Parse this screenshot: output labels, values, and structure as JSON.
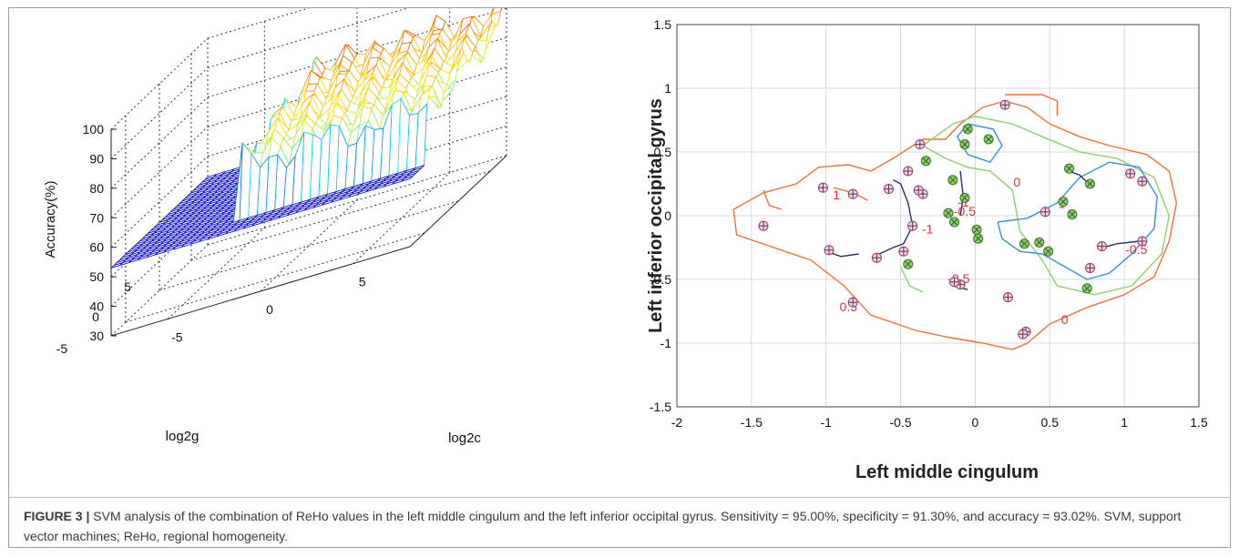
{
  "figure_label": "FIGURE 3 |",
  "caption": "SVM analysis of the combination of ReHo values in the left middle cingulum and the left inferior occipital gyrus. Sensitivity = 95.00%, specificity = 91.30%, and accuracy = 93.02%. SVM, support vector machines; ReHo, regional homogeneity.",
  "chart_data": [
    {
      "type": "surface",
      "xlabel": "log2c",
      "ylabel": "log2g",
      "zlabel": "Accuracy(%)",
      "x_ticks": [
        "-5",
        "0",
        "5"
      ],
      "y_ticks": [
        "5",
        "0",
        "-5"
      ],
      "z_ticks": [
        "30",
        "40",
        "50",
        "60",
        "70",
        "80",
        "90",
        "100"
      ],
      "zlim": [
        30,
        100
      ],
      "grid": true,
      "surface_summary": {
        "flat_region_accuracy": 53,
        "peak_region_accuracy_range": [
          70,
          90
        ],
        "colormap": "jet"
      }
    },
    {
      "type": "contour",
      "xlabel": "Left middle cingulum",
      "ylabel": "Left inferior occipital gyrus",
      "xlim": [
        -2,
        1.5
      ],
      "ylim": [
        -1.5,
        1.5
      ],
      "x_ticks": [
        "-2",
        "-1.5",
        "-1",
        "-0.5",
        "0",
        "0.5",
        "1",
        "1.5"
      ],
      "y_ticks": [
        "-1.5",
        "-1",
        "-0.5",
        "0",
        "0.5",
        "1",
        "1.5"
      ],
      "grid": true,
      "contour_labels": [
        "1",
        "0",
        "-1",
        "-0.5",
        "-1",
        "-0.5",
        "0",
        "1",
        "-0.5",
        "0.5"
      ],
      "class_a_points": [
        [
          -1.42,
          -0.08
        ],
        [
          -1.02,
          0.22
        ],
        [
          -0.82,
          0.17
        ],
        [
          -0.98,
          -0.27
        ],
        [
          -0.82,
          -0.68
        ],
        [
          -0.58,
          0.21
        ],
        [
          -0.66,
          -0.33
        ],
        [
          -0.45,
          0.35
        ],
        [
          -0.37,
          0.56
        ],
        [
          -0.35,
          0.17
        ],
        [
          -0.38,
          0.2
        ],
        [
          -0.42,
          -0.08
        ],
        [
          -0.48,
          -0.28
        ],
        [
          -0.1,
          -0.54
        ],
        [
          -0.14,
          -0.52
        ],
        [
          0.2,
          0.87
        ],
        [
          0.47,
          0.03
        ],
        [
          0.22,
          -0.64
        ],
        [
          0.34,
          -0.91
        ],
        [
          0.32,
          -0.93
        ],
        [
          1.04,
          0.33
        ],
        [
          1.12,
          0.27
        ],
        [
          1.12,
          -0.2
        ],
        [
          0.85,
          -0.24
        ],
        [
          0.77,
          -0.41
        ]
      ],
      "class_b_points": [
        [
          -0.33,
          0.43
        ],
        [
          -0.45,
          -0.38
        ],
        [
          -0.15,
          0.28
        ],
        [
          -0.07,
          0.14
        ],
        [
          -0.05,
          0.68
        ],
        [
          -0.07,
          0.56
        ],
        [
          0.09,
          0.6
        ],
        [
          -0.18,
          0.02
        ],
        [
          -0.14,
          -0.05
        ],
        [
          0.01,
          -0.11
        ],
        [
          0.02,
          -0.18
        ],
        [
          0.43,
          -0.21
        ],
        [
          0.33,
          -0.22
        ],
        [
          0.49,
          -0.28
        ],
        [
          0.63,
          0.37
        ],
        [
          0.59,
          0.11
        ],
        [
          0.65,
          0.01
        ],
        [
          0.77,
          0.25
        ],
        [
          0.75,
          -0.57
        ]
      ]
    }
  ]
}
